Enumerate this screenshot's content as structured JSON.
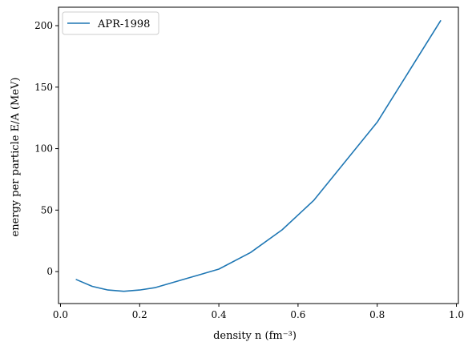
{
  "chart_data": {
    "type": "line",
    "xlabel": "density n (fm⁻³)",
    "ylabel": "energy per particle E/A (MeV)",
    "xlim": [
      -0.005,
      1.005
    ],
    "ylim": [
      -26,
      215
    ],
    "xticks": [
      0.0,
      0.2,
      0.4,
      0.6,
      0.8,
      1.0
    ],
    "xtick_labels": [
      "0.0",
      "0.2",
      "0.4",
      "0.6",
      "0.8",
      "1.0"
    ],
    "yticks": [
      0,
      50,
      100,
      150,
      200
    ],
    "ytick_labels": [
      "0",
      "50",
      "100",
      "150",
      "200"
    ],
    "grid": false,
    "legend_position": "top-left",
    "series": [
      {
        "name": "APR-1998",
        "color": "#1f77b4",
        "x": [
          0.04,
          0.08,
          0.12,
          0.16,
          0.2,
          0.24,
          0.32,
          0.4,
          0.48,
          0.56,
          0.64,
          0.8,
          0.96
        ],
        "y": [
          -6.5,
          -12.0,
          -15.0,
          -16.0,
          -15.0,
          -13.0,
          -5.5,
          2.0,
          15.5,
          34.0,
          58.0,
          121.5,
          204.0
        ]
      }
    ]
  }
}
